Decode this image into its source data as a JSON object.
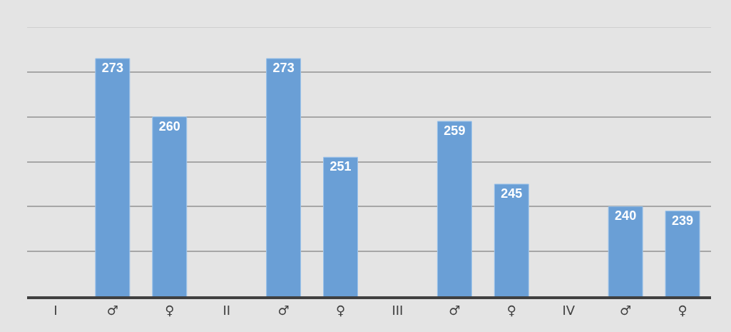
{
  "chart_data": {
    "type": "bar",
    "categories": [
      "I",
      "♂",
      "♀",
      "II",
      "♂",
      "♀",
      "III",
      "♂",
      "♀",
      "IV",
      "♂",
      "♀"
    ],
    "values": [
      null,
      273,
      260,
      null,
      273,
      251,
      null,
      259,
      245,
      null,
      240,
      239
    ],
    "color": "#6a9fd6",
    "ylim": [
      220,
      280
    ],
    "yticks": [
      {
        "value": 230,
        "label": null
      },
      {
        "value": 240,
        "label": null
      },
      {
        "value": 250,
        "label": null
      },
      {
        "value": 260,
        "label": null
      },
      {
        "value": 270,
        "label": null
      }
    ],
    "tick_labels": "x",
    "grid": "y",
    "data_labels": true,
    "legend": false
  }
}
